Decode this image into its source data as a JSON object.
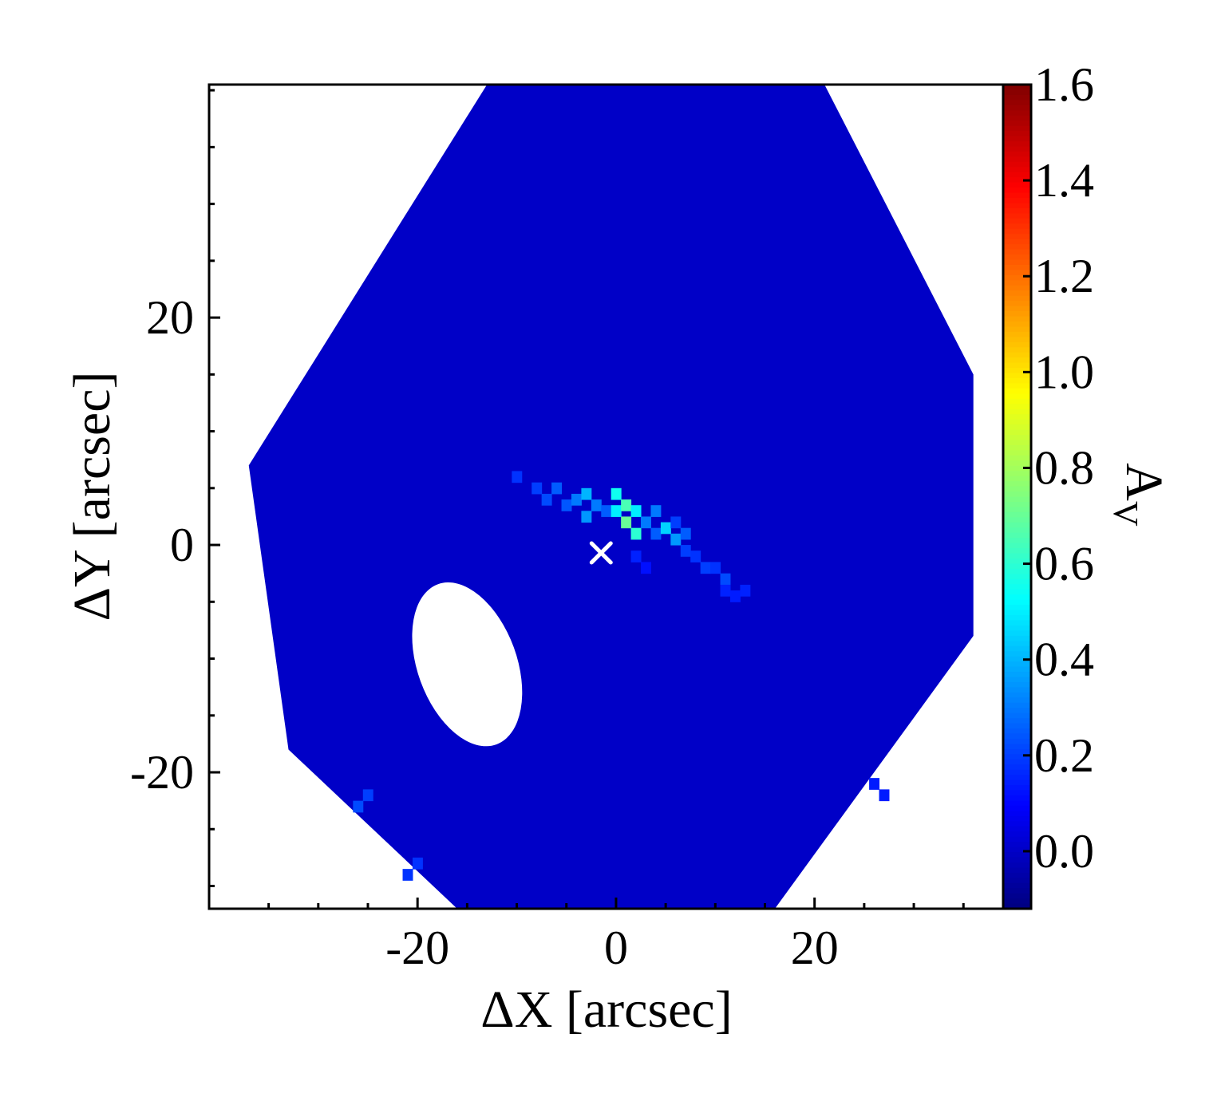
{
  "chart_data": {
    "type": "heatmap",
    "title": "",
    "xlabel": "ΔX [arcsec]",
    "ylabel": "ΔY [arcsec]",
    "xlim": [
      -41,
      39
    ],
    "ylim": [
      -32,
      40.5
    ],
    "x_ticks": [
      -20,
      0,
      20
    ],
    "x_tick_labels": [
      "-20",
      "0",
      "20"
    ],
    "y_ticks": [
      -20,
      0,
      20
    ],
    "y_tick_labels": [
      "-20",
      "0",
      "20"
    ],
    "grid": false,
    "colorbar": {
      "label": "A",
      "label_subscript": "V",
      "colormap": "jet",
      "vmin": -0.12,
      "vmax": 1.6,
      "ticks": [
        0.0,
        0.2,
        0.4,
        0.6,
        0.8,
        1.0,
        1.2,
        1.4,
        1.6
      ],
      "tick_labels": [
        "0.0",
        "0.2",
        "0.4",
        "0.6",
        "0.8",
        "1.0",
        "1.2",
        "1.4",
        "1.6"
      ]
    },
    "background_value": 0.0,
    "field_of_view": {
      "shape": "hexagon",
      "vertices": [
        [
          -37,
          7
        ],
        [
          -13,
          40.5
        ],
        [
          21,
          40.5
        ],
        [
          36,
          15
        ],
        [
          36,
          -8
        ],
        [
          16,
          -32
        ],
        [
          -16,
          -32
        ],
        [
          -33,
          -18
        ]
      ]
    },
    "masked_regions": [
      {
        "shape": "ellipse",
        "center": [
          -15,
          -10.5
        ],
        "semi_axes": [
          5.0,
          7.5
        ],
        "angle_deg": 20
      }
    ],
    "features": [
      {
        "x": -10,
        "y": 6,
        "value": 0.18
      },
      {
        "x": -8,
        "y": 5,
        "value": 0.2
      },
      {
        "x": -7,
        "y": 4,
        "value": 0.22
      },
      {
        "x": -6,
        "y": 5,
        "value": 0.25
      },
      {
        "x": -5,
        "y": 3.5,
        "value": 0.24
      },
      {
        "x": -4,
        "y": 4,
        "value": 0.3
      },
      {
        "x": -3,
        "y": 4.5,
        "value": 0.4
      },
      {
        "x": -3,
        "y": 2.5,
        "value": 0.35
      },
      {
        "x": -2,
        "y": 3.5,
        "value": 0.3
      },
      {
        "x": -1,
        "y": 3,
        "value": 0.25
      },
      {
        "x": 0,
        "y": 4.5,
        "value": 0.55
      },
      {
        "x": 0,
        "y": 3,
        "value": 0.5
      },
      {
        "x": 1,
        "y": 3.5,
        "value": 0.65
      },
      {
        "x": 1,
        "y": 2,
        "value": 0.7
      },
      {
        "x": 2,
        "y": 1,
        "value": 0.6
      },
      {
        "x": 2,
        "y": 3,
        "value": 0.5
      },
      {
        "x": 3,
        "y": 2,
        "value": 0.3
      },
      {
        "x": 4,
        "y": 3,
        "value": 0.3
      },
      {
        "x": 4,
        "y": 1,
        "value": 0.25
      },
      {
        "x": 5,
        "y": 1.5,
        "value": 0.45
      },
      {
        "x": 6,
        "y": 0.5,
        "value": 0.35
      },
      {
        "x": 6,
        "y": 2,
        "value": 0.2
      },
      {
        "x": 7,
        "y": -0.5,
        "value": 0.2
      },
      {
        "x": 7,
        "y": 1,
        "value": 0.25
      },
      {
        "x": 8,
        "y": -1,
        "value": 0.18
      },
      {
        "x": 9,
        "y": -2,
        "value": 0.2
      },
      {
        "x": 10,
        "y": -2,
        "value": 0.18
      },
      {
        "x": 11,
        "y": -3,
        "value": 0.22
      },
      {
        "x": 11,
        "y": -4,
        "value": 0.15
      },
      {
        "x": 12,
        "y": -4.5,
        "value": 0.14
      },
      {
        "x": 13,
        "y": -4,
        "value": 0.15
      },
      {
        "x": 2,
        "y": -1,
        "value": 0.15
      },
      {
        "x": 3,
        "y": -2,
        "value": 0.12
      },
      {
        "x": -25,
        "y": -22,
        "value": 0.2
      },
      {
        "x": -26,
        "y": -23,
        "value": 0.22
      },
      {
        "x": -20,
        "y": -28,
        "value": 0.18
      },
      {
        "x": -21,
        "y": -29,
        "value": 0.18
      },
      {
        "x": 26,
        "y": -21,
        "value": 0.14
      },
      {
        "x": 27,
        "y": -22,
        "value": 0.14
      }
    ],
    "marker": {
      "x": -1.5,
      "y": -0.7,
      "symbol": "×",
      "color": "#ffffff"
    }
  }
}
